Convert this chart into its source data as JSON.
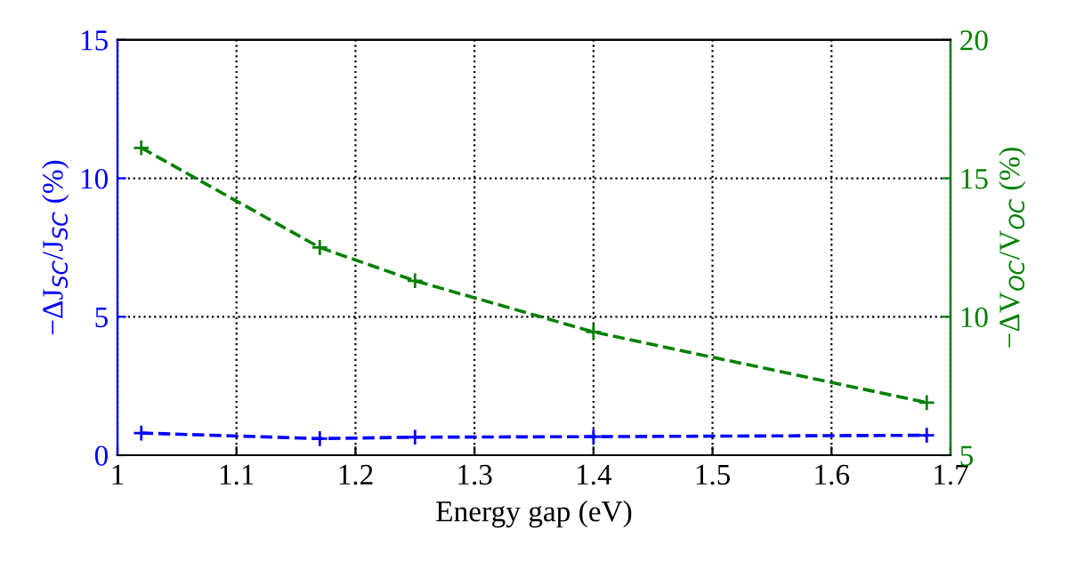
{
  "chart_data": {
    "type": "line",
    "xlabel": "Energy gap (eV)",
    "ylabel": "−ΔJ$_{SC}$/J$_{SC}$ (%)",
    "y2label": "−ΔV$_{OC}$/V$_{OC}$ (%)",
    "x": [
      1.02,
      1.17,
      1.25,
      1.4,
      1.68
    ],
    "series": [
      {
        "color": "#0000ff",
        "values": [
          0.8,
          0.6,
          0.65,
          0.67,
          0.72
        ]
      },
      {
        "color": "#008000",
        "values": [
          16.1,
          12.5,
          11.3,
          9.45,
          6.9
        ],
        "axis": "y2"
      }
    ],
    "xlim": [
      1,
      1.7
    ],
    "xticks": [
      1,
      1.1,
      1.2,
      1.3,
      1.4,
      1.5,
      1.6,
      1.7
    ],
    "ylim": [
      0,
      15
    ],
    "yticks": [
      0,
      5,
      10,
      15
    ],
    "y2lim": [
      5,
      20
    ],
    "y2ticks": [
      5,
      10,
      15,
      20
    ],
    "grid": true,
    "marker": "cross",
    "line_style": "dashed"
  }
}
